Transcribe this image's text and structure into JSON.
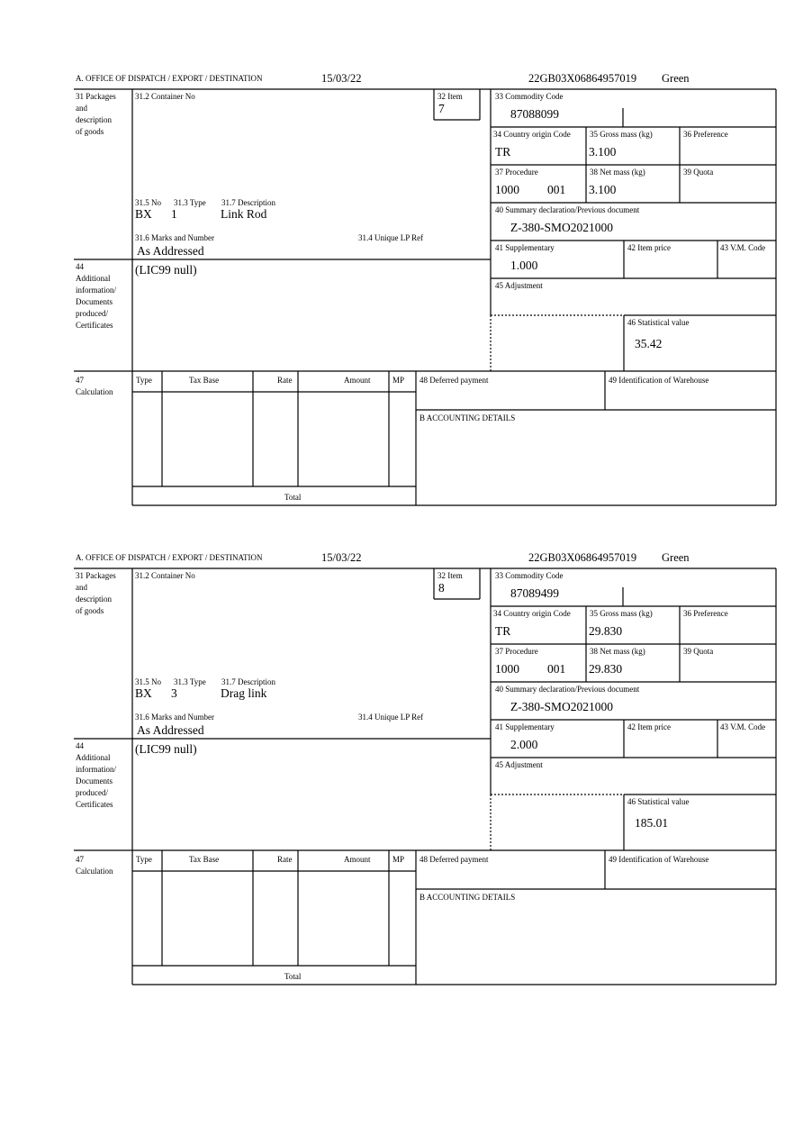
{
  "labels": {
    "office": "A. OFFICE OF DISPATCH / EXPORT / DESTINATION",
    "box31": [
      "31 Packages",
      "and",
      "description",
      "of goods"
    ],
    "container": "31.2 Container No",
    "item": "32 Item",
    "commodity": "33 Commodity Code",
    "country": "34 Country origin Code",
    "gross": "35 Gross mass (kg)",
    "preference": "36 Preference",
    "procedure": "37 Procedure",
    "net": "38 Net mass (kg)",
    "quota": "39 Quota",
    "summary": "40 Summary declaration/Previous document",
    "supplementary": "41 Supplementary",
    "price": "42 Item price",
    "vm": "43 V.M. Code",
    "adjustment": "45 Adjustment",
    "statistical": "46 Statistical value",
    "no": "31.5 No",
    "ptype": "31.3 Type",
    "description": "31.7 Description",
    "marks": "31.6 Marks and Number",
    "lpref": "31.4 Unique LP Ref",
    "box44": [
      "44",
      "Additional",
      "information/",
      "Documents",
      "produced/",
      "Certificates"
    ],
    "box47": [
      "47",
      "Calculation"
    ],
    "calc": [
      "Type",
      "Tax Base",
      "Rate",
      "Amount",
      "MP"
    ],
    "deferred": "48 Deferred payment",
    "warehouse": "49 Identification of Warehouse",
    "accounting": "B ACCOUNTING DETAILS",
    "total": "Total"
  },
  "forms": [
    {
      "date": "15/03/22",
      "reference": "22GB03X06864957019",
      "status": "Green",
      "item": "7",
      "commodity": "87088099",
      "country": "TR",
      "gross": "3.100",
      "procedure": "1000",
      "procedure_code": "001",
      "net": "3.100",
      "summary": "Z-380-SMO2021000",
      "supplementary": "1.000",
      "statistical": "35.42",
      "no": "BX",
      "count": "1",
      "description": "Link Rod",
      "marks": "As Addressed",
      "info": "(LIC99 null)"
    },
    {
      "date": "15/03/22",
      "reference": "22GB03X06864957019",
      "status": "Green",
      "item": "8",
      "commodity": "87089499",
      "country": "TR",
      "gross": "29.830",
      "procedure": "1000",
      "procedure_code": "001",
      "net": "29.830",
      "summary": "Z-380-SMO2021000",
      "supplementary": "2.000",
      "statistical": "185.01",
      "no": "BX",
      "count": "3",
      "description": "Drag link",
      "marks": "As Addressed",
      "info": "(LIC99 null)"
    }
  ]
}
